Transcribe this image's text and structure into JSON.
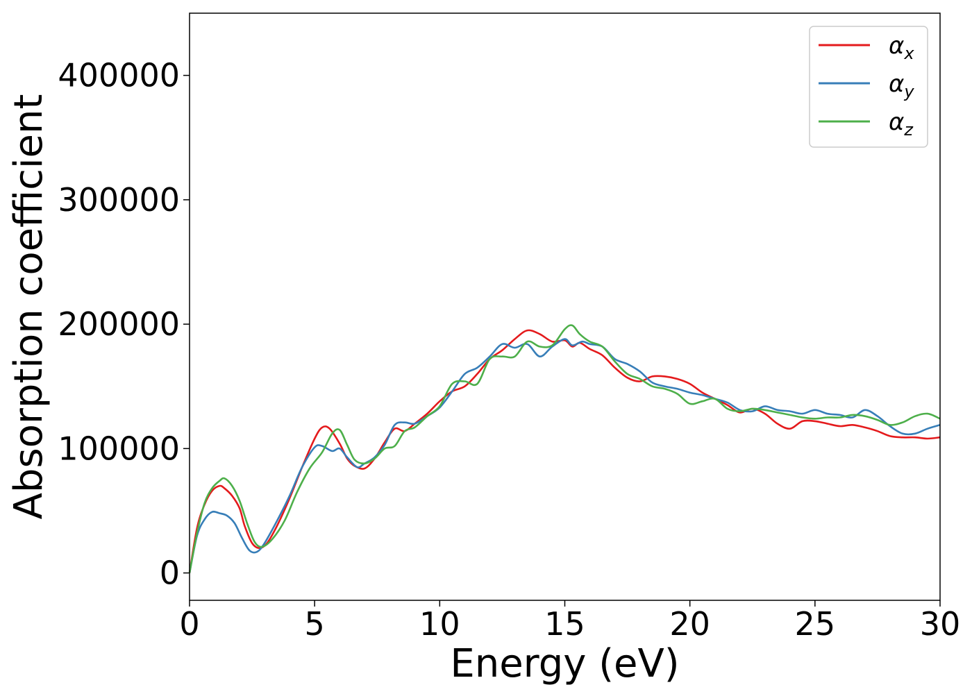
{
  "chart_data": {
    "type": "line",
    "title": "",
    "xlabel": "Energy (eV)",
    "ylabel": "Absorption coefficient",
    "xlim": [
      0,
      30
    ],
    "ylim": [
      -22000,
      450000
    ],
    "xticks": [
      0,
      5,
      10,
      15,
      20,
      25,
      30
    ],
    "yticks": [
      0,
      100000,
      200000,
      300000,
      400000
    ],
    "xtick_labels": [
      "0",
      "5",
      "10",
      "15",
      "20",
      "25",
      "30"
    ],
    "ytick_labels": [
      "0",
      "100000",
      "200000",
      "300000",
      "400000"
    ],
    "grid": false,
    "legend_position": "top-right",
    "series": [
      {
        "name": "α",
        "name_subscript": "x",
        "color": "#e41a1c",
        "x": [
          0,
          0.3,
          0.6,
          0.9,
          1.2,
          1.4,
          1.7,
          2.0,
          2.2,
          2.5,
          2.8,
          3.1,
          3.5,
          4.0,
          4.5,
          5.0,
          5.3,
          5.6,
          6.0,
          6.3,
          6.6,
          7.0,
          7.4,
          7.8,
          8.2,
          8.6,
          9.0,
          9.5,
          10.0,
          10.5,
          11.0,
          11.5,
          12.0,
          12.5,
          13.0,
          13.5,
          14.0,
          14.5,
          15.0,
          15.3,
          15.6,
          16.0,
          16.5,
          17.0,
          17.5,
          18.0,
          18.5,
          19.0,
          19.5,
          20.0,
          20.5,
          21.0,
          21.5,
          22.0,
          22.5,
          23.0,
          23.5,
          24.0,
          24.5,
          25.0,
          25.5,
          26.0,
          26.5,
          27.0,
          27.5,
          28.0,
          28.5,
          29.0,
          29.5,
          30.0
        ],
        "y": [
          0,
          36000,
          55000,
          66000,
          70000,
          68000,
          62000,
          52000,
          38000,
          24000,
          20000,
          24000,
          38000,
          60000,
          85000,
          108000,
          117000,
          116000,
          104000,
          92000,
          86000,
          84000,
          92000,
          105000,
          116000,
          114000,
          120000,
          128000,
          138000,
          146000,
          150000,
          160000,
          172000,
          179000,
          188000,
          195000,
          192000,
          186000,
          187000,
          182000,
          185000,
          180000,
          175000,
          165000,
          157000,
          154000,
          158000,
          158000,
          156000,
          152000,
          145000,
          140000,
          135000,
          129000,
          132000,
          128000,
          120000,
          116000,
          122000,
          122000,
          120000,
          118000,
          119000,
          117000,
          114000,
          110000,
          109000,
          109000,
          108000,
          109000
        ]
      },
      {
        "name": "α",
        "name_subscript": "y",
        "color": "#377eb8",
        "x": [
          0,
          0.3,
          0.6,
          0.9,
          1.2,
          1.5,
          1.8,
          2.1,
          2.4,
          2.7,
          3.0,
          3.5,
          4.0,
          4.5,
          5.0,
          5.3,
          5.7,
          6.0,
          6.3,
          6.7,
          7.0,
          7.4,
          7.8,
          8.2,
          8.6,
          9.0,
          9.5,
          10.0,
          10.5,
          11.0,
          11.5,
          12.0,
          12.5,
          13.0,
          13.5,
          14.0,
          14.5,
          15.0,
          15.3,
          15.7,
          16.0,
          16.5,
          17.0,
          17.5,
          18.0,
          18.5,
          19.0,
          19.5,
          20.0,
          20.5,
          21.0,
          21.5,
          22.0,
          22.5,
          23.0,
          23.5,
          24.0,
          24.5,
          25.0,
          25.5,
          26.0,
          26.5,
          27.0,
          27.5,
          28.0,
          28.5,
          29.0,
          29.5,
          30.0
        ],
        "y": [
          0,
          30000,
          43000,
          49000,
          48000,
          46000,
          40000,
          28000,
          18000,
          17000,
          24000,
          42000,
          62000,
          85000,
          101000,
          102000,
          98000,
          100000,
          93000,
          85000,
          88000,
          93000,
          103000,
          119000,
          121000,
          120000,
          126000,
          133000,
          146000,
          160000,
          165000,
          174000,
          184000,
          181000,
          184000,
          174000,
          182000,
          188000,
          183000,
          186000,
          184000,
          182000,
          172000,
          168000,
          162000,
          153000,
          150000,
          148000,
          145000,
          143000,
          140000,
          137000,
          131000,
          130000,
          134000,
          131000,
          130000,
          128000,
          131000,
          128000,
          127000,
          125000,
          131000,
          126000,
          118000,
          112000,
          112000,
          116000,
          119000
        ]
      },
      {
        "name": "α",
        "name_subscript": "z",
        "color": "#4daf4a",
        "x": [
          0,
          0.3,
          0.6,
          0.9,
          1.2,
          1.4,
          1.7,
          2.0,
          2.3,
          2.6,
          2.9,
          3.3,
          3.8,
          4.3,
          4.8,
          5.3,
          5.7,
          6.0,
          6.3,
          6.6,
          7.0,
          7.4,
          7.8,
          8.2,
          8.6,
          9.0,
          9.5,
          10.0,
          10.5,
          11.0,
          11.5,
          12.0,
          12.5,
          13.0,
          13.5,
          14.0,
          14.5,
          15.0,
          15.3,
          15.6,
          16.0,
          16.5,
          17.0,
          17.5,
          18.0,
          18.5,
          19.0,
          19.5,
          20.0,
          20.5,
          21.0,
          21.5,
          22.0,
          22.5,
          23.0,
          23.5,
          24.0,
          24.5,
          25.0,
          25.5,
          26.0,
          26.5,
          27.0,
          27.5,
          28.0,
          28.5,
          29.0,
          29.5,
          30.0
        ],
        "y": [
          0,
          32000,
          56000,
          68000,
          74000,
          76000,
          70000,
          58000,
          40000,
          25000,
          21000,
          27000,
          42000,
          65000,
          84000,
          97000,
          112000,
          115000,
          103000,
          91000,
          88000,
          92000,
          100000,
          102000,
          114000,
          117000,
          126000,
          134000,
          152000,
          154000,
          152000,
          172000,
          174000,
          174000,
          186000,
          182000,
          183000,
          196000,
          199000,
          192000,
          186000,
          182000,
          170000,
          160000,
          156000,
          150000,
          148000,
          144000,
          136000,
          138000,
          140000,
          132000,
          130000,
          132000,
          131000,
          129000,
          127000,
          125000,
          124000,
          125000,
          125000,
          127000,
          126000,
          123000,
          119000,
          121000,
          126000,
          128000,
          124000
        ]
      }
    ]
  }
}
